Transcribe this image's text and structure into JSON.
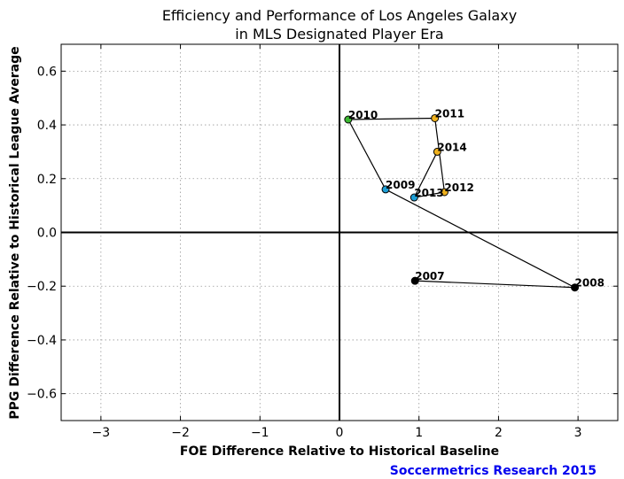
{
  "chart_data": {
    "type": "scatter",
    "title": [
      "Efficiency and Performance of Los Angeles Galaxy",
      "in MLS Designated Player Era"
    ],
    "xlabel": "FOE Difference Relative to Historical Baseline",
    "ylabel": "PPG Difference Relative to Historical League Average",
    "xlim": [
      -3.5,
      3.5
    ],
    "ylim": [
      -0.7,
      0.7
    ],
    "xticks": [
      -3,
      -2,
      -1,
      0,
      1,
      2,
      3
    ],
    "xtick_labels": [
      "−3",
      "−2",
      "−1",
      "0",
      "1",
      "2",
      "3"
    ],
    "yticks": [
      -0.6,
      -0.4,
      -0.2,
      0.0,
      0.2,
      0.4,
      0.6
    ],
    "ytick_labels": [
      "−0.6",
      "−0.4",
      "−0.2",
      "0.0",
      "0.2",
      "0.4",
      "0.6"
    ],
    "grid": true,
    "connected_path": true,
    "points": [
      {
        "label": "2007",
        "x": 0.95,
        "y": -0.18,
        "color": "#000000"
      },
      {
        "label": "2008",
        "x": 2.96,
        "y": -0.205,
        "color": "#000000"
      },
      {
        "label": "2009",
        "x": 0.58,
        "y": 0.16,
        "color": "#1e9fd6"
      },
      {
        "label": "2010",
        "x": 0.11,
        "y": 0.42,
        "color": "#3cb832"
      },
      {
        "label": "2011",
        "x": 1.2,
        "y": 0.425,
        "color": "#f0b21e"
      },
      {
        "label": "2012",
        "x": 1.32,
        "y": 0.15,
        "color": "#f0b21e"
      },
      {
        "label": "2013",
        "x": 0.94,
        "y": 0.13,
        "color": "#1e9fd6"
      },
      {
        "label": "2014",
        "x": 1.23,
        "y": 0.3,
        "color": "#f0b21e"
      }
    ]
  },
  "credit": {
    "text": "Soccermetrics Research 2015",
    "color": "#0000ee"
  }
}
